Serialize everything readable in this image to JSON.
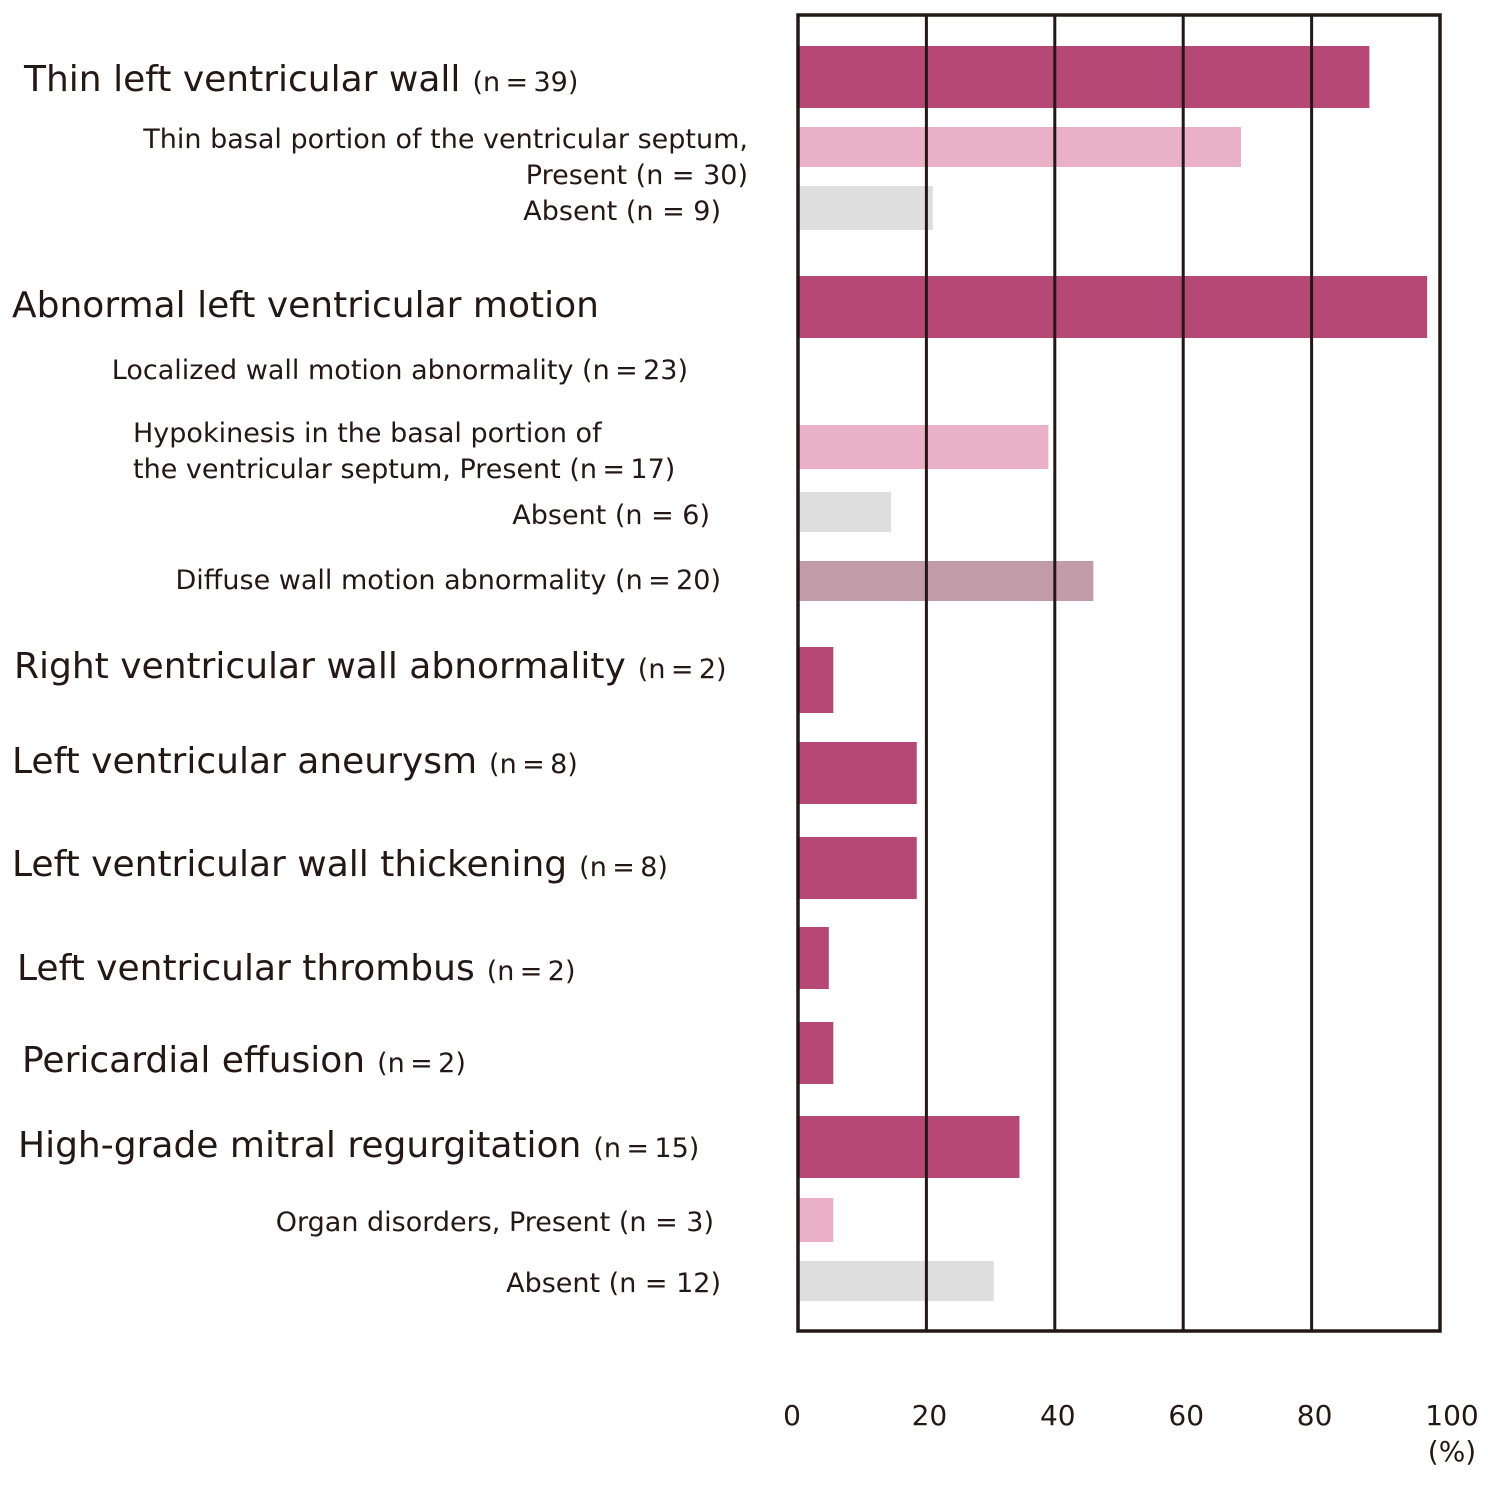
{
  "chart_data": {
    "type": "bar",
    "orientation": "horizontal",
    "xlim": [
      0,
      100
    ],
    "xticks": [
      "0",
      "20",
      "40",
      "60",
      "80",
      "100"
    ],
    "x_unit": "(%)",
    "grid": true,
    "legend": "none",
    "colors": {
      "main": "#b54874",
      "present": "#eab0c7",
      "absent": "#dedede",
      "diffuse": "#c29ba9",
      "frame": "#231815"
    },
    "rows": [
      {
        "label": "Thin left ventricular wall",
        "n": "(n = 39)",
        "value": 89,
        "style": "main"
      },
      {
        "label": "Thin basal portion of the ventricular septum,",
        "n": "",
        "value": null,
        "style": "none"
      },
      {
        "label": "Present (n = 30)",
        "n": "",
        "value": 69,
        "style": "present"
      },
      {
        "label": "Absent (n = 9)",
        "n": "",
        "value": 21,
        "style": "absent"
      },
      {
        "label": "Abnormal left ventricular motion",
        "n": "",
        "value": 98,
        "style": "main"
      },
      {
        "label": "Localized wall motion abnormality (n = 23)",
        "n": "",
        "value": null,
        "style": "none"
      },
      {
        "label": "Hypokinesis in the basal portion of",
        "n": "",
        "value": null,
        "style": "none"
      },
      {
        "label": "the ventricular septum, Present (n = 17)",
        "n": "",
        "value": 39,
        "style": "present"
      },
      {
        "label": "Absent (n = 6)",
        "n": "",
        "value": 14.5,
        "style": "absent"
      },
      {
        "label": "Diffuse wall motion abnormality (n = 20)",
        "n": "",
        "value": 46,
        "style": "diffuse"
      },
      {
        "label": "Right ventricular wall abnormality",
        "n": "(n = 2)",
        "value": 5.5,
        "style": "main"
      },
      {
        "label": "Left ventricular aneurysm",
        "n": "(n = 8)",
        "value": 18.5,
        "style": "main"
      },
      {
        "label": "Left ventricular wall thickening",
        "n": "(n = 8)",
        "value": 18.5,
        "style": "main"
      },
      {
        "label": "Left ventricular thrombus",
        "n": "(n = 2)",
        "value": 4.8,
        "style": "main"
      },
      {
        "label": "Pericardial effusion",
        "n": "(n = 2)",
        "value": 5.5,
        "style": "main"
      },
      {
        "label": "High-grade mitral regurgitation",
        "n": "(n = 15)",
        "value": 34.5,
        "style": "main"
      },
      {
        "label": "Organ disorders, Present (n = 3)",
        "n": "",
        "value": 5.5,
        "style": "present"
      },
      {
        "label": "Absent (n = 12)",
        "n": "",
        "value": 30.5,
        "style": "absent"
      }
    ]
  }
}
